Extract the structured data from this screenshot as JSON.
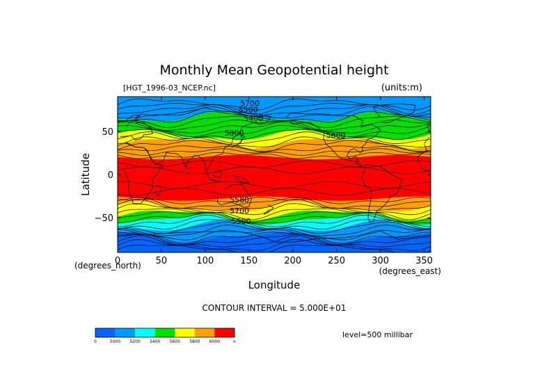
{
  "chart_data": {
    "type": "heatmap",
    "title": "Monthly Mean Geopotential height",
    "file_label": "[HGT_1996-03_NCEP.nc]",
    "units_label": "(units:m)",
    "xlabel": "Longitude",
    "ylabel": "Latitude",
    "x_unit_label": "(degrees_east)",
    "y_unit_label": "(degrees_north)",
    "xlim": [
      0,
      357.5
    ],
    "ylim": [
      -90,
      90
    ],
    "x_ticks": [
      0,
      50,
      100,
      150,
      200,
      250,
      300,
      350
    ],
    "x_tick_labels": [
      "0",
      "50",
      "100",
      "150",
      "200",
      "250",
      "300",
      "350"
    ],
    "y_ticks": [
      -50,
      0,
      50
    ],
    "y_tick_labels": [
      "−50",
      "0",
      "50"
    ],
    "contour_interval_text": "CONTOUR INTERVAL = 5.000E+01",
    "level_text": "level=500 millibar",
    "contour_labels": [
      "5700",
      "5500",
      "5400",
      "5800",
      "5600",
      "5580",
      "5700",
      "5500"
    ],
    "colorbar": {
      "boundaries": [
        0,
        5000,
        5200,
        5400,
        5600,
        5800,
        6000,
        "∞"
      ],
      "boundary_labels": [
        "0",
        "5000",
        "5200",
        "5400",
        "5600",
        "5800",
        "6000",
        "∞"
      ],
      "colors": [
        "#0064ff",
        "#0099ff",
        "#00ffff",
        "#00e000",
        "#ffff00",
        "#ffa000",
        "#ff0000"
      ]
    },
    "bands_lat_to_bin": [
      {
        "lat_from": 90,
        "lat_to": 66,
        "bin": 1
      },
      {
        "lat_from": 66,
        "lat_to": 45,
        "bin": 3
      },
      {
        "lat_from": 45,
        "lat_to": 37,
        "bin": 4
      },
      {
        "lat_from": 37,
        "lat_to": 20,
        "bin": 5
      },
      {
        "lat_from": 20,
        "lat_to": -28,
        "bin": 6
      },
      {
        "lat_from": -28,
        "lat_to": -38,
        "bin": 5
      },
      {
        "lat_from": -38,
        "lat_to": -46,
        "bin": 4
      },
      {
        "lat_from": -46,
        "lat_to": -52,
        "bin": 3
      },
      {
        "lat_from": -52,
        "lat_to": -60,
        "bin": 2
      },
      {
        "lat_from": -60,
        "lat_to": -72,
        "bin": 1
      },
      {
        "lat_from": -72,
        "lat_to": -90,
        "bin": 0
      }
    ]
  }
}
